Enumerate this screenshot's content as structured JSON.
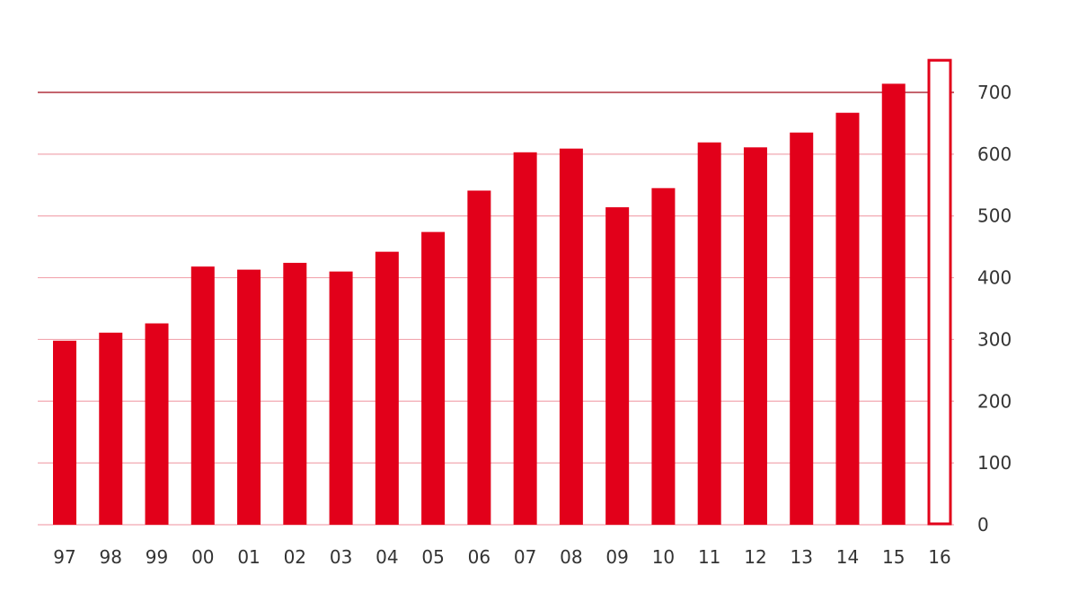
{
  "chart_data": {
    "type": "bar",
    "categories": [
      "97",
      "98",
      "99",
      "00",
      "01",
      "02",
      "03",
      "04",
      "05",
      "06",
      "07",
      "08",
      "09",
      "10",
      "11",
      "12",
      "13",
      "14",
      "15",
      "16"
    ],
    "values": [
      298,
      311,
      326,
      418,
      413,
      424,
      410,
      442,
      474,
      541,
      603,
      609,
      514,
      545,
      619,
      611,
      635,
      667,
      714,
      752
    ],
    "outlined_categories": [
      "16"
    ],
    "y_ticks": [
      0,
      100,
      200,
      300,
      400,
      500,
      600,
      700
    ],
    "ylim": [
      0,
      750
    ],
    "y_axis_side": "right",
    "grid": true,
    "title": "",
    "xlabel": "",
    "ylabel": "",
    "colors": {
      "bar": "#e2001a",
      "grid": "#f2a7b0",
      "top_rule": "#b0303f",
      "text": "#333333"
    }
  }
}
